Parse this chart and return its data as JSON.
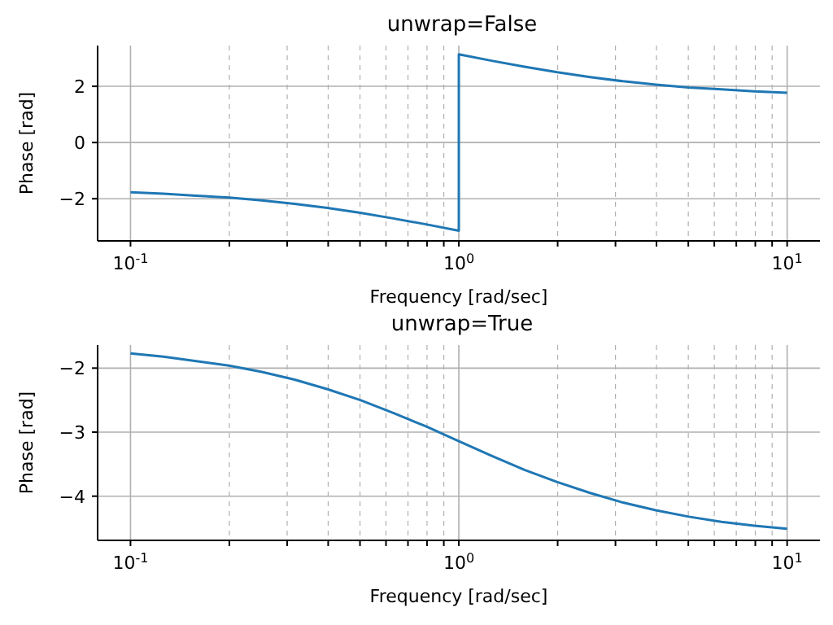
{
  "chart_data": [
    {
      "type": "line",
      "title": "unwrap=False",
      "xlabel": "Frequency [rad/sec]",
      "ylabel": "Phase [rad]",
      "log": "x",
      "grid": true,
      "xlim": [
        0.0794,
        12.59
      ],
      "ylim": [
        -3.5,
        3.45
      ],
      "yticks": [
        -2,
        0,
        2
      ],
      "xticks": [
        {
          "value": 0.1,
          "label": "10$^{-1}$"
        },
        {
          "value": 0.2,
          "label": null
        },
        {
          "value": 0.3,
          "label": null
        },
        {
          "value": 0.4,
          "label": null
        },
        {
          "value": 0.5,
          "label": null
        },
        {
          "value": 0.6,
          "label": null
        },
        {
          "value": 0.7,
          "label": null
        },
        {
          "value": 0.8,
          "label": null
        },
        {
          "value": 0.9,
          "label": null
        },
        {
          "value": 1,
          "label": "10$^{0}$"
        },
        {
          "value": 2,
          "label": null
        },
        {
          "value": 3,
          "label": null
        },
        {
          "value": 4,
          "label": null
        },
        {
          "value": 5,
          "label": null
        },
        {
          "value": 6,
          "label": null
        },
        {
          "value": 7,
          "label": null
        },
        {
          "value": 8,
          "label": null
        },
        {
          "value": 9,
          "label": null
        },
        {
          "value": 10,
          "label": "10$^{1}$"
        }
      ],
      "series": [
        {
          "color": "#1f77b4",
          "x": [
            0.1,
            0.1259,
            0.1585,
            0.1995,
            0.2512,
            0.3162,
            0.3981,
            0.5012,
            0.631,
            0.7943,
            1,
            1,
            1.2589,
            1.5849,
            1.9953,
            2.5119,
            3.1623,
            3.9811,
            5.0119,
            6.3096,
            7.9433,
            10
          ],
          "values": [
            -1.77,
            -1.82,
            -1.89,
            -1.96,
            -2.06,
            -2.18,
            -2.33,
            -2.5,
            -2.7,
            -2.91,
            -3.14,
            3.14,
            2.91,
            2.7,
            2.5,
            2.33,
            2.18,
            2.06,
            1.96,
            1.89,
            1.82,
            1.77
          ]
        }
      ]
    },
    {
      "type": "line",
      "title": "unwrap=True",
      "xlabel": "Frequency [rad/sec]",
      "ylabel": "Phase [rad]",
      "log": "x",
      "grid": true,
      "xlim": [
        0.0794,
        12.59
      ],
      "ylim": [
        -4.69,
        -1.64
      ],
      "yticks": [
        -4,
        -3,
        -2
      ],
      "xticks": [
        {
          "value": 0.1,
          "label": "10$^{-1}$"
        },
        {
          "value": 0.2,
          "label": null
        },
        {
          "value": 0.3,
          "label": null
        },
        {
          "value": 0.4,
          "label": null
        },
        {
          "value": 0.5,
          "label": null
        },
        {
          "value": 0.6,
          "label": null
        },
        {
          "value": 0.7,
          "label": null
        },
        {
          "value": 0.8,
          "label": null
        },
        {
          "value": 0.9,
          "label": null
        },
        {
          "value": 1,
          "label": "10$^{0}$"
        },
        {
          "value": 2,
          "label": null
        },
        {
          "value": 3,
          "label": null
        },
        {
          "value": 4,
          "label": null
        },
        {
          "value": 5,
          "label": null
        },
        {
          "value": 6,
          "label": null
        },
        {
          "value": 7,
          "label": null
        },
        {
          "value": 8,
          "label": null
        },
        {
          "value": 9,
          "label": null
        },
        {
          "value": 10,
          "label": "10$^{1}$"
        }
      ],
      "series": [
        {
          "color": "#1f77b4",
          "x": [
            0.1,
            0.1259,
            0.1585,
            0.1995,
            0.2512,
            0.3162,
            0.3981,
            0.5012,
            0.631,
            0.7943,
            1,
            1.2589,
            1.5849,
            1.9953,
            2.5119,
            3.1623,
            3.9811,
            5.0119,
            6.3096,
            7.9433,
            10
          ],
          "values": [
            -1.77,
            -1.82,
            -1.89,
            -1.96,
            -2.06,
            -2.18,
            -2.33,
            -2.5,
            -2.7,
            -2.91,
            -3.14,
            -3.37,
            -3.59,
            -3.78,
            -3.95,
            -4.1,
            -4.22,
            -4.32,
            -4.4,
            -4.46,
            -4.51
          ]
        }
      ]
    }
  ]
}
